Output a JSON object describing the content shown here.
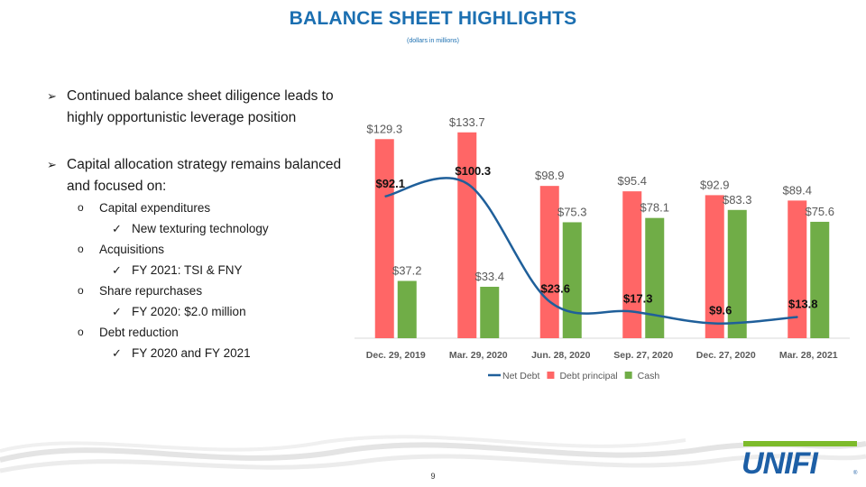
{
  "header": {
    "title": "BALANCE SHEET HIGHLIGHTS",
    "subtitle": "(dollars in millions)"
  },
  "bullets": {
    "b1": "Continued balance sheet diligence leads to highly opportunistic leverage position",
    "b2": "Capital allocation strategy remains balanced and focused on:",
    "sub1": "Capital expenditures",
    "sub1a": "New texturing technology",
    "sub2": "Acquisitions",
    "sub2a": "FY 2021: TSI & FNY",
    "sub3": "Share repurchases",
    "sub3a": "FY 2020: $2.0 million",
    "sub4": "Debt reduction",
    "sub4a": "FY 2020 and FY 2021"
  },
  "footer": {
    "page_number": "9",
    "logo_text": "UNIFI",
    "logo_mark": "®"
  },
  "colors": {
    "title": "#1b6fb1",
    "debt": "#ff6666",
    "cash": "#70ad47",
    "net_debt": "#1f5f9a"
  },
  "chart_data": {
    "type": "bar",
    "categories": [
      "Dec. 29, 2019",
      "Mar. 29, 2020",
      "Jun. 28, 2020",
      "Sep. 27, 2020",
      "Dec. 27, 2020",
      "Mar. 28, 2021"
    ],
    "series": [
      {
        "name": "Debt principal",
        "type": "bar",
        "color": "#ff6666",
        "values": [
          129.3,
          133.7,
          98.9,
          95.4,
          92.9,
          89.4
        ],
        "labels": [
          "$129.3",
          "$133.7",
          "$98.9",
          "$95.4",
          "$92.9",
          "$89.4"
        ]
      },
      {
        "name": "Cash",
        "type": "bar",
        "color": "#70ad47",
        "values": [
          37.2,
          33.4,
          75.3,
          78.1,
          83.3,
          75.6
        ],
        "labels": [
          "$37.2",
          "$33.4",
          "$75.3",
          "$78.1",
          "$83.3",
          "$75.6"
        ]
      },
      {
        "name": "Net Debt",
        "type": "line",
        "color": "#1f5f9a",
        "values": [
          92.1,
          100.3,
          23.6,
          17.3,
          9.6,
          13.8
        ],
        "labels": [
          "$92.1",
          "$100.3",
          "$23.6",
          "$17.3",
          "$9.6",
          "$13.8"
        ]
      }
    ],
    "legend_order": [
      "Net Debt",
      "Debt principal",
      "Cash"
    ],
    "ylim": [
      0,
      140
    ],
    "grid": false,
    "legend": "bottom"
  }
}
